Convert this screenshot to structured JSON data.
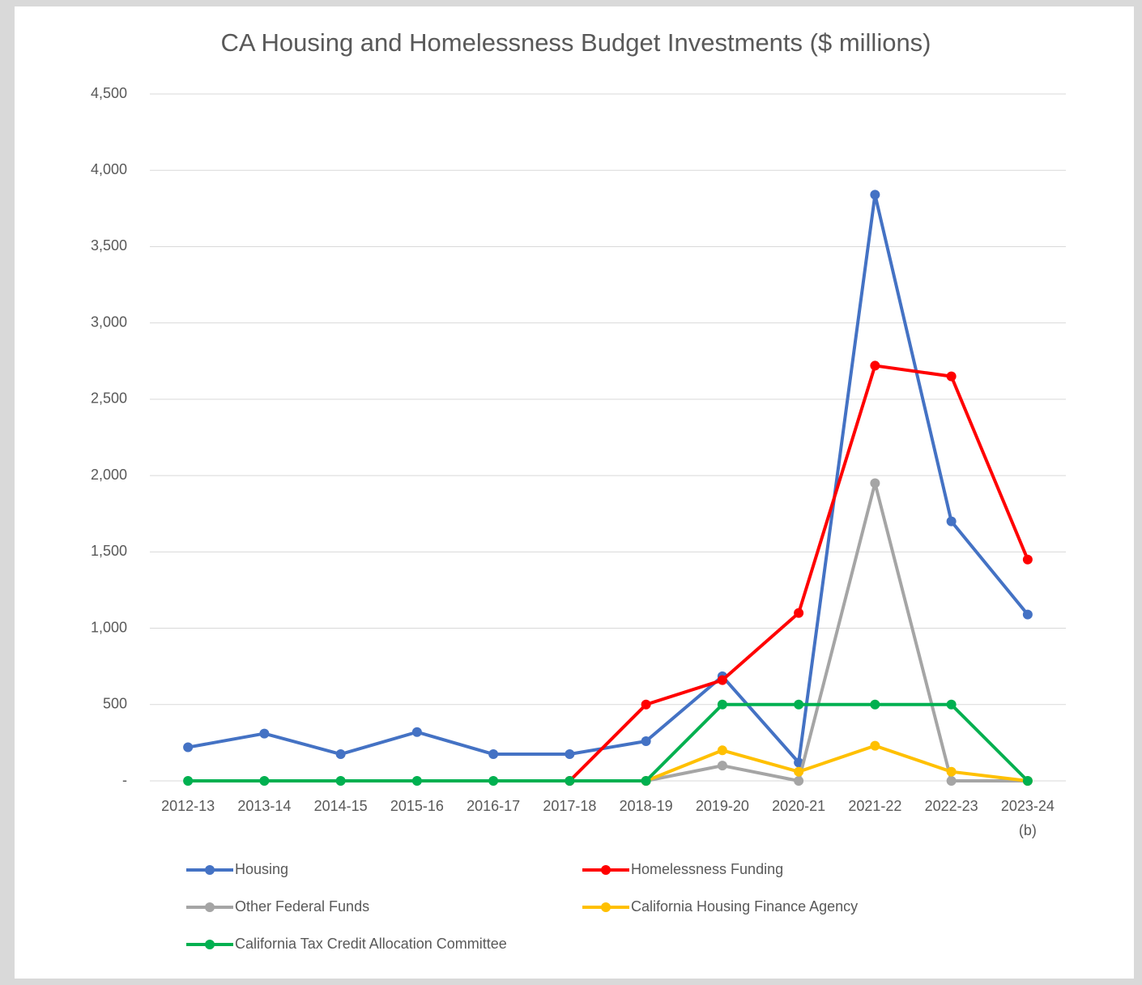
{
  "chart_data": {
    "type": "line",
    "title": "CA Housing and Homelessness Budget Investments ($ millions)",
    "categories": [
      "2012-13",
      "2013-14",
      "2014-15",
      "2015-16",
      "2016-17",
      "2017-18",
      "2018-19",
      "2019-20",
      "2020-21",
      "2021-22",
      "2022-23",
      "2023-24\n(b)"
    ],
    "series": [
      {
        "name": "Housing",
        "color": "#4472c4",
        "values": [
          220,
          310,
          175,
          320,
          175,
          175,
          260,
          685,
          120,
          3840,
          1700,
          1090
        ]
      },
      {
        "name": "Homelessness Funding",
        "color": "#ff0000",
        "values": [
          null,
          null,
          null,
          null,
          null,
          0,
          500,
          660,
          1100,
          2720,
          2650,
          1450
        ]
      },
      {
        "name": "Other Federal Funds",
        "color": "#a5a5a5",
        "values": [
          null,
          null,
          null,
          null,
          null,
          null,
          0,
          100,
          0,
          1950,
          0,
          0
        ]
      },
      {
        "name": "California Housing Finance Agency",
        "color": "#ffc000",
        "values": [
          null,
          null,
          null,
          null,
          null,
          null,
          0,
          200,
          60,
          230,
          60,
          0
        ]
      },
      {
        "name": "California Tax Credit Allocation Committee",
        "color": "#00b050",
        "values": [
          0,
          0,
          0,
          0,
          0,
          0,
          0,
          500,
          500,
          500,
          500,
          0
        ]
      }
    ],
    "ylim": [
      0,
      4500
    ],
    "yticks": [
      {
        "value": 0,
        "label": "-"
      },
      500,
      {
        "value": 1000,
        "label": "1,000"
      },
      {
        "value": 1500,
        "label": "1,500"
      },
      {
        "value": 2000,
        "label": "2,000"
      },
      {
        "value": 2500,
        "label": "2,500"
      },
      {
        "value": 3000,
        "label": "3,000"
      },
      {
        "value": 3500,
        "label": "3,500"
      },
      {
        "value": 4000,
        "label": "4,000"
      },
      {
        "value": 4500,
        "label": "4,500"
      }
    ],
    "grid": true,
    "legend": "bottom"
  }
}
